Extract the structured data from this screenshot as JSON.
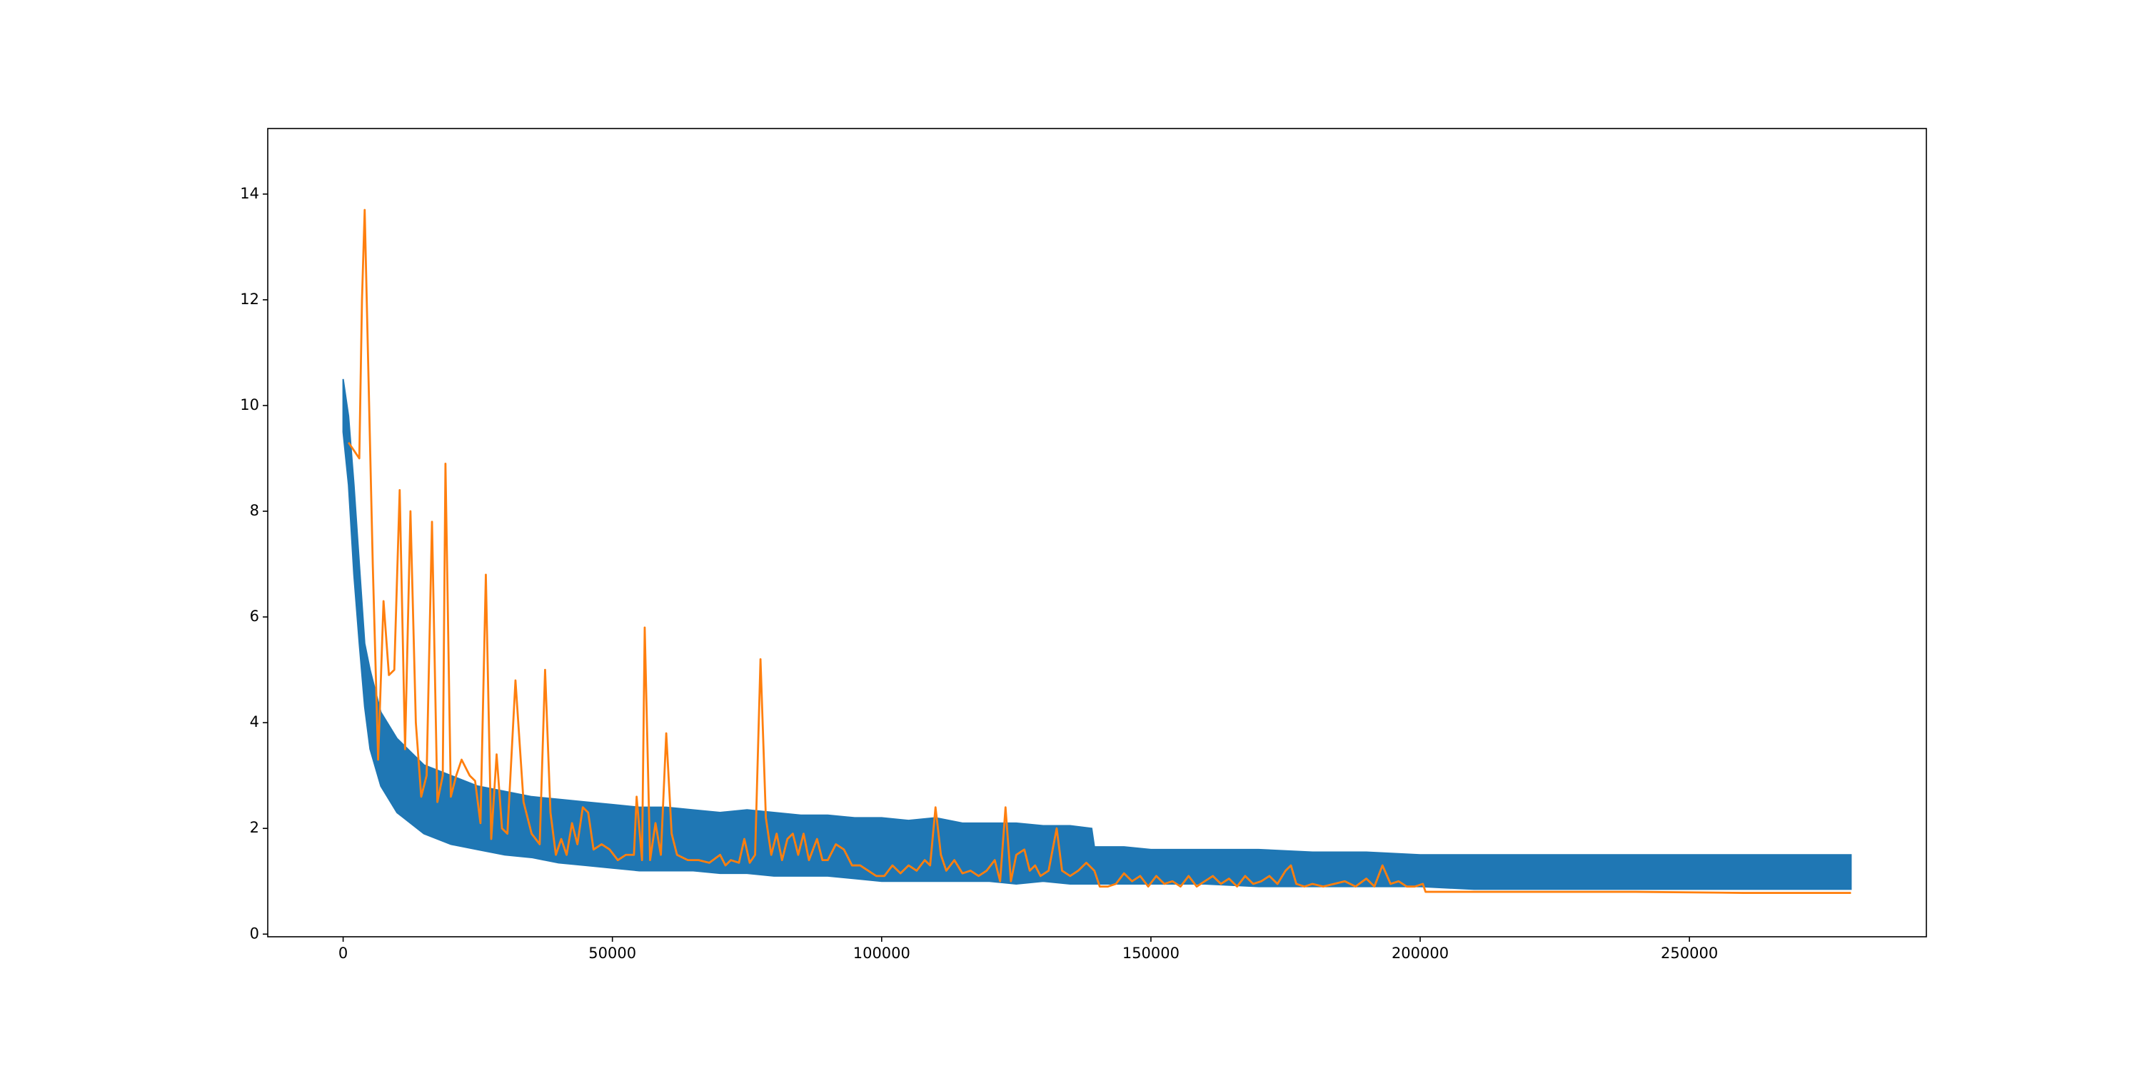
{
  "chart_data": {
    "type": "line",
    "xlim": [
      -14000,
      294000
    ],
    "ylim": [
      -0.05,
      15.24
    ],
    "xticks": [
      0,
      50000,
      100000,
      150000,
      200000,
      250000
    ],
    "yticks": [
      0,
      2,
      4,
      6,
      8,
      10,
      12,
      14
    ],
    "band": {
      "color": "#1f77b4",
      "x": [
        0,
        1000,
        2000,
        3000,
        4000,
        5000,
        7000,
        10000,
        15000,
        20000,
        25000,
        30000,
        35000,
        40000,
        45000,
        50000,
        55000,
        60000,
        65000,
        70000,
        75000,
        80000,
        85000,
        90000,
        95000,
        100000,
        105000,
        110000,
        115000,
        120000,
        125000,
        130000,
        135000,
        139000,
        139500,
        145000,
        150000,
        160000,
        170000,
        180000,
        190000,
        200000,
        210000,
        220000,
        230000,
        240000,
        250000,
        260000,
        270000,
        280000
      ],
      "upper": [
        10.5,
        9.8,
        8.5,
        7.0,
        5.5,
        5.0,
        4.2,
        3.7,
        3.2,
        3.0,
        2.8,
        2.7,
        2.6,
        2.55,
        2.5,
        2.45,
        2.4,
        2.4,
        2.35,
        2.3,
        2.35,
        2.3,
        2.25,
        2.25,
        2.2,
        2.2,
        2.15,
        2.2,
        2.1,
        2.1,
        2.1,
        2.05,
        2.05,
        2.0,
        1.65,
        1.65,
        1.6,
        1.6,
        1.6,
        1.55,
        1.55,
        1.5,
        1.5,
        1.5,
        1.5,
        1.5,
        1.5,
        1.5,
        1.5,
        1.5
      ],
      "lower": [
        9.5,
        8.5,
        6.8,
        5.5,
        4.3,
        3.5,
        2.8,
        2.3,
        1.9,
        1.7,
        1.6,
        1.5,
        1.45,
        1.35,
        1.3,
        1.25,
        1.2,
        1.2,
        1.2,
        1.15,
        1.15,
        1.1,
        1.1,
        1.1,
        1.05,
        1.0,
        1.0,
        1.0,
        1.0,
        1.0,
        0.95,
        1.0,
        0.95,
        0.95,
        0.95,
        0.95,
        0.95,
        0.95,
        0.9,
        0.9,
        0.9,
        0.9,
        0.85,
        0.85,
        0.85,
        0.85,
        0.85,
        0.85,
        0.85,
        0.85
      ]
    },
    "series": [
      {
        "color": "#ff7f0e",
        "x": [
          1000,
          3000,
          3500,
          4000,
          5500,
          6500,
          7500,
          8500,
          9500,
          10500,
          11500,
          12500,
          13500,
          14500,
          15500,
          16500,
          17500,
          18500,
          19000,
          20000,
          21000,
          22000,
          23500,
          24500,
          25500,
          26500,
          27500,
          28500,
          29500,
          30500,
          32000,
          33500,
          35000,
          36500,
          37500,
          38500,
          39500,
          40500,
          41500,
          42500,
          43500,
          44500,
          45500,
          46500,
          48000,
          49500,
          51000,
          52500,
          54000,
          54500,
          55500,
          56000,
          57000,
          58000,
          59000,
          60000,
          61000,
          62000,
          64000,
          66000,
          68000,
          70000,
          71000,
          72000,
          73500,
          74500,
          75500,
          76500,
          77500,
          78500,
          79500,
          80500,
          81500,
          82500,
          83500,
          84500,
          85500,
          86500,
          88000,
          89000,
          90000,
          91500,
          93000,
          94500,
          96000,
          97500,
          99000,
          100500,
          102000,
          103500,
          105000,
          106500,
          108000,
          109000,
          110000,
          111000,
          112000,
          113500,
          115000,
          116500,
          118000,
          119500,
          121000,
          122000,
          123000,
          124000,
          125000,
          126500,
          127500,
          128500,
          129500,
          131000,
          132500,
          133500,
          135000,
          136500,
          138000,
          139500,
          140500,
          142000,
          143500,
          145000,
          146500,
          148000,
          149500,
          151000,
          152500,
          154000,
          155500,
          157000,
          158500,
          160000,
          161500,
          163000,
          164500,
          166000,
          167500,
          169000,
          170500,
          172000,
          173500,
          175000,
          176000,
          177000,
          178500,
          180000,
          182000,
          184000,
          186000,
          188000,
          190000,
          191500,
          193000,
          194500,
          196000,
          197500,
          199000,
          200500,
          201000,
          220000,
          240000,
          260000,
          280000
        ],
        "values": [
          9.3,
          9.0,
          12.0,
          13.7,
          7.0,
          3.3,
          6.3,
          4.9,
          5.0,
          8.4,
          3.5,
          8.0,
          4.0,
          2.6,
          3.0,
          7.8,
          2.5,
          3.0,
          8.9,
          2.6,
          3.0,
          3.3,
          3.0,
          2.9,
          2.1,
          6.8,
          1.8,
          3.4,
          2.0,
          1.9,
          4.8,
          2.5,
          1.9,
          1.7,
          5.0,
          2.3,
          1.5,
          1.8,
          1.5,
          2.1,
          1.7,
          2.4,
          2.3,
          1.6,
          1.7,
          1.6,
          1.4,
          1.5,
          1.5,
          2.6,
          1.4,
          5.8,
          1.4,
          2.1,
          1.5,
          3.8,
          1.9,
          1.5,
          1.4,
          1.4,
          1.35,
          1.5,
          1.3,
          1.4,
          1.35,
          1.8,
          1.35,
          1.5,
          5.2,
          2.2,
          1.5,
          1.9,
          1.4,
          1.8,
          1.9,
          1.5,
          1.9,
          1.4,
          1.8,
          1.4,
          1.4,
          1.7,
          1.6,
          1.3,
          1.3,
          1.2,
          1.1,
          1.1,
          1.3,
          1.15,
          1.3,
          1.2,
          1.4,
          1.3,
          2.4,
          1.5,
          1.2,
          1.4,
          1.15,
          1.2,
          1.1,
          1.2,
          1.4,
          1.0,
          2.4,
          1.0,
          1.5,
          1.6,
          1.2,
          1.3,
          1.1,
          1.2,
          2.0,
          1.2,
          1.1,
          1.2,
          1.35,
          1.2,
          0.9,
          0.9,
          0.95,
          1.15,
          1.0,
          1.1,
          0.9,
          1.1,
          0.95,
          1.0,
          0.9,
          1.1,
          0.9,
          1.0,
          1.1,
          0.95,
          1.05,
          0.9,
          1.1,
          0.95,
          1.0,
          1.1,
          0.95,
          1.2,
          1.3,
          0.95,
          0.9,
          0.95,
          0.9,
          0.95,
          1.0,
          0.9,
          1.05,
          0.9,
          1.3,
          0.95,
          1.0,
          0.9,
          0.9,
          0.95,
          0.8,
          0.8,
          0.8,
          0.78,
          0.78
        ]
      }
    ]
  }
}
